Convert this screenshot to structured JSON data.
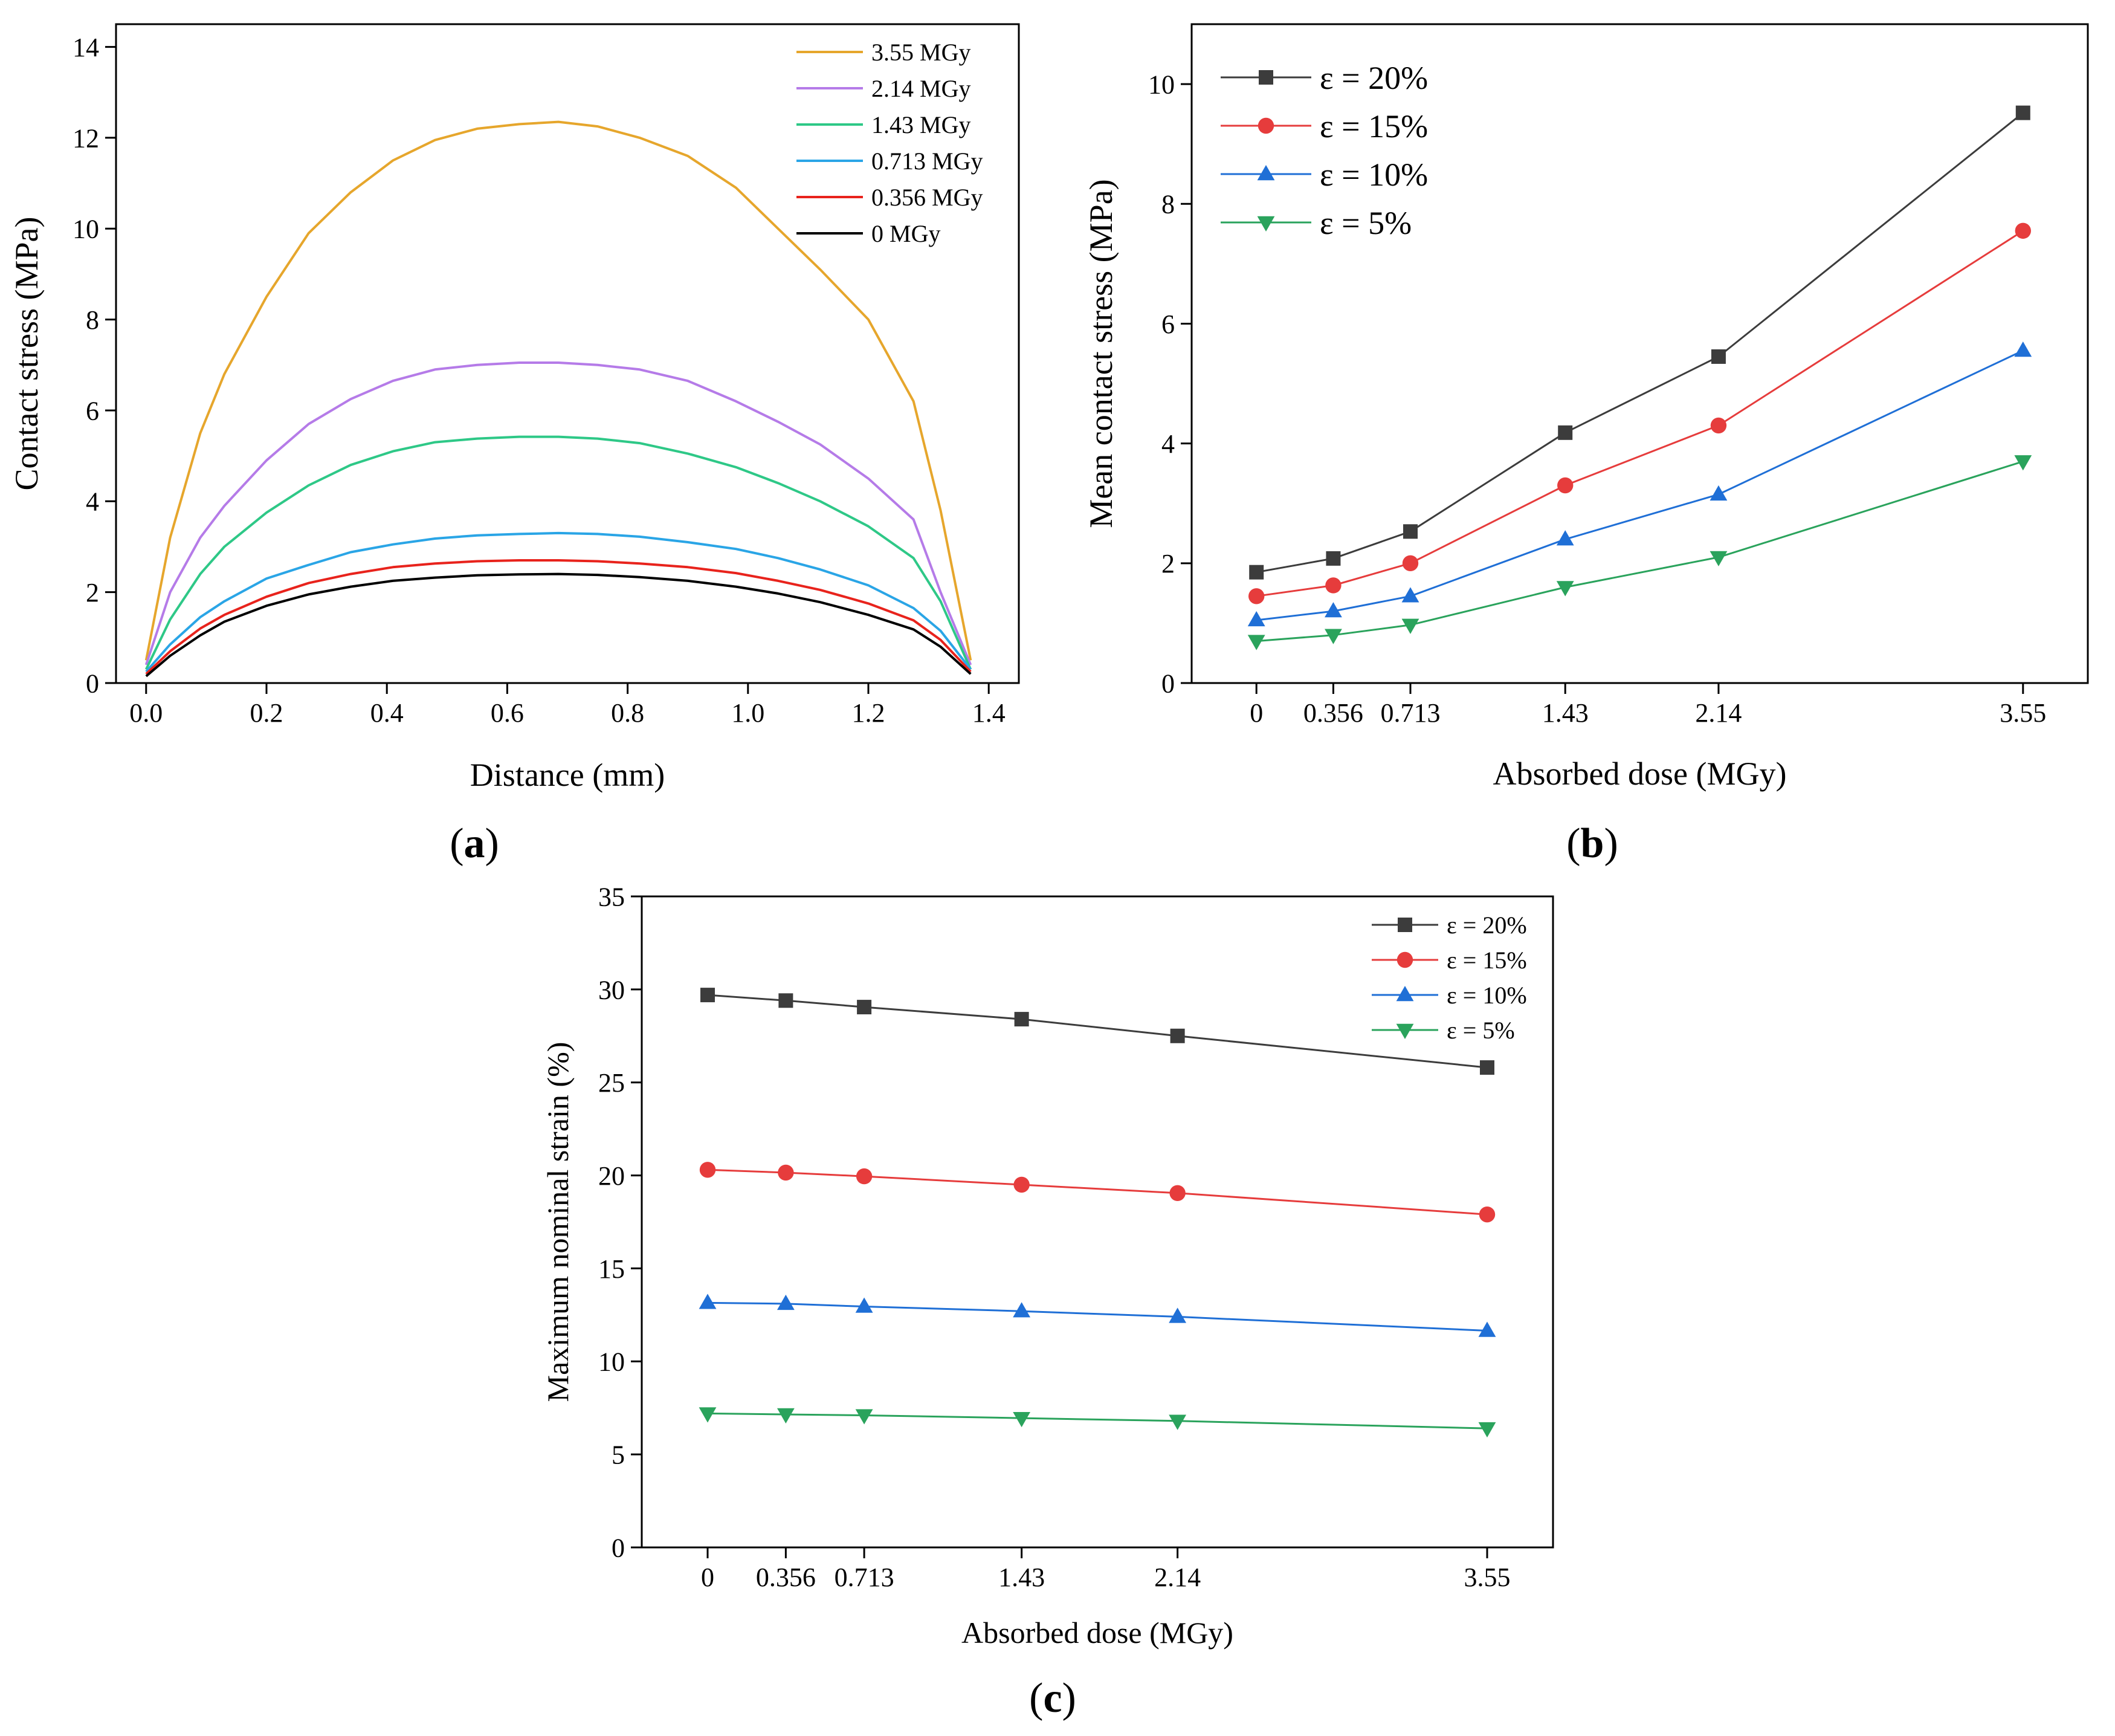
{
  "chart_data": [
    {
      "panel": "a",
      "panel_label": "a",
      "type": "line",
      "xlabel": "Distance (mm)",
      "ylabel": "Contact stress (MPa)",
      "xlim": [
        -0.05,
        1.45
      ],
      "ylim": [
        0,
        14.5
      ],
      "xticks": [
        0.0,
        0.2,
        0.4,
        0.6,
        0.8,
        1.0,
        1.2,
        1.4
      ],
      "xtick_labels": [
        "0.0",
        "0.2",
        "0.4",
        "0.6",
        "0.8",
        "1.0",
        "1.2",
        "1.4"
      ],
      "yticks": [
        0,
        2,
        4,
        6,
        8,
        10,
        12,
        14
      ],
      "ytick_labels": [
        "0",
        "2",
        "4",
        "6",
        "8",
        "10",
        "12",
        "14"
      ],
      "grid": false,
      "legend_position": "top-right",
      "x": [
        0,
        0.04,
        0.09,
        0.13,
        0.2,
        0.27,
        0.34,
        0.41,
        0.48,
        0.55,
        0.62,
        0.685,
        0.75,
        0.82,
        0.9,
        0.98,
        1.05,
        1.12,
        1.2,
        1.275,
        1.32,
        1.37
      ],
      "series": [
        {
          "name": "3.55 MGy",
          "color": "#e6a62c",
          "values": [
            0.5,
            3.2,
            5.5,
            6.8,
            8.5,
            9.9,
            10.8,
            11.5,
            11.95,
            12.2,
            12.3,
            12.35,
            12.25,
            12.0,
            11.6,
            10.9,
            10.0,
            9.1,
            8.0,
            6.2,
            3.8,
            0.5
          ]
        },
        {
          "name": "2.14 MGy",
          "color": "#b57be8",
          "values": [
            0.4,
            2.0,
            3.2,
            3.9,
            4.9,
            5.7,
            6.25,
            6.65,
            6.9,
            7.0,
            7.05,
            7.05,
            7.0,
            6.9,
            6.65,
            6.2,
            5.75,
            5.25,
            4.5,
            3.6,
            2.0,
            0.4
          ]
        },
        {
          "name": "1.43 MGy",
          "color": "#2ec887",
          "values": [
            0.3,
            1.4,
            2.4,
            3.0,
            3.75,
            4.35,
            4.8,
            5.1,
            5.3,
            5.38,
            5.42,
            5.42,
            5.38,
            5.28,
            5.05,
            4.75,
            4.4,
            4.0,
            3.45,
            2.75,
            1.8,
            0.3
          ]
        },
        {
          "name": "0.713 MGy",
          "color": "#2aa5e6",
          "values": [
            0.25,
            0.85,
            1.45,
            1.8,
            2.3,
            2.6,
            2.88,
            3.05,
            3.18,
            3.25,
            3.28,
            3.3,
            3.28,
            3.22,
            3.1,
            2.95,
            2.75,
            2.5,
            2.15,
            1.65,
            1.15,
            0.3
          ]
        },
        {
          "name": "0.356 MGy",
          "color": "#e8231c",
          "values": [
            0.2,
            0.7,
            1.2,
            1.5,
            1.9,
            2.2,
            2.4,
            2.55,
            2.63,
            2.68,
            2.7,
            2.7,
            2.68,
            2.63,
            2.55,
            2.42,
            2.25,
            2.05,
            1.75,
            1.38,
            0.95,
            0.25
          ]
        },
        {
          "name": "0 MGy",
          "color": "#000000",
          "values": [
            0.15,
            0.6,
            1.05,
            1.35,
            1.7,
            1.95,
            2.12,
            2.25,
            2.32,
            2.37,
            2.39,
            2.4,
            2.38,
            2.33,
            2.25,
            2.12,
            1.97,
            1.78,
            1.5,
            1.18,
            0.8,
            0.2
          ]
        }
      ]
    },
    {
      "panel": "b",
      "panel_label": "b",
      "type": "line",
      "xlabel": "Absorbed dose (MGy)",
      "ylabel": "Mean contact stress (MPa)",
      "xlim": [
        -0.3,
        3.85
      ],
      "ylim": [
        0,
        11
      ],
      "x": [
        0,
        0.356,
        0.713,
        1.43,
        2.14,
        3.55
      ],
      "xtick_labels": [
        "0",
        "0.356",
        "0.713",
        "1.43",
        "2.14",
        "3.55"
      ],
      "yticks": [
        0,
        2,
        4,
        6,
        8,
        10
      ],
      "ytick_labels": [
        "0",
        "2",
        "4",
        "6",
        "8",
        "10"
      ],
      "grid": false,
      "legend_position": "top-left",
      "series": [
        {
          "name": "ε = 20%",
          "color": "#3c3c3c",
          "marker": "square",
          "values": [
            1.85,
            2.08,
            2.53,
            4.18,
            5.45,
            9.52
          ]
        },
        {
          "name": "ε = 15%",
          "color": "#e63c3c",
          "marker": "circle",
          "values": [
            1.45,
            1.63,
            2.0,
            3.3,
            4.3,
            7.55
          ]
        },
        {
          "name": "ε = 10%",
          "color": "#1f6fd6",
          "marker": "triangle-up",
          "values": [
            1.05,
            1.2,
            1.45,
            2.4,
            3.15,
            5.55
          ]
        },
        {
          "name": "ε = 5%",
          "color": "#2aa35c",
          "marker": "triangle-down",
          "values": [
            0.7,
            0.8,
            0.97,
            1.6,
            2.1,
            3.7
          ]
        }
      ]
    },
    {
      "panel": "c",
      "panel_label": "c",
      "type": "line",
      "xlabel": "Absorbed dose (MGy)",
      "ylabel": "Maximum nominal strain (%)",
      "xlim": [
        -0.3,
        3.85
      ],
      "ylim": [
        0,
        35
      ],
      "x": [
        0,
        0.356,
        0.713,
        1.43,
        2.14,
        3.55
      ],
      "xtick_labels": [
        "0",
        "0.356",
        "0.713",
        "1.43",
        "2.14",
        "3.55"
      ],
      "yticks": [
        0,
        5,
        10,
        15,
        20,
        25,
        30,
        35
      ],
      "ytick_labels": [
        "0",
        "5",
        "10",
        "15",
        "20",
        "25",
        "30",
        "35"
      ],
      "grid": false,
      "legend_position": "top-right",
      "series": [
        {
          "name": "ε = 20%",
          "color": "#3c3c3c",
          "marker": "square",
          "values": [
            29.7,
            29.4,
            29.05,
            28.4,
            27.5,
            25.8
          ]
        },
        {
          "name": "ε = 15%",
          "color": "#e63c3c",
          "marker": "circle",
          "values": [
            20.3,
            20.15,
            19.95,
            19.5,
            19.05,
            17.9
          ]
        },
        {
          "name": "ε = 10%",
          "color": "#1f6fd6",
          "marker": "triangle-up",
          "values": [
            13.15,
            13.1,
            12.95,
            12.7,
            12.4,
            11.65
          ]
        },
        {
          "name": "ε = 5%",
          "color": "#2aa35c",
          "marker": "triangle-down",
          "values": [
            7.2,
            7.15,
            7.1,
            6.95,
            6.8,
            6.4
          ]
        }
      ]
    }
  ]
}
